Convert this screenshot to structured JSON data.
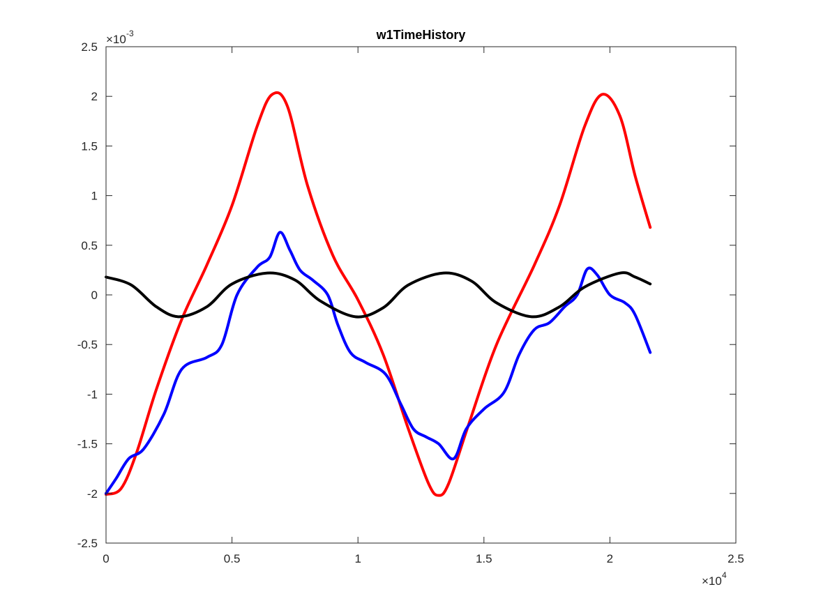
{
  "chart_data": {
    "type": "line",
    "title": "w1TimeHistory",
    "xlabel": "",
    "ylabel": "",
    "xlim": [
      0,
      25000
    ],
    "ylim": [
      -0.0025,
      0.0025
    ],
    "x_ticks": [
      0,
      5000,
      10000,
      15000,
      20000,
      25000
    ],
    "x_tick_labels": [
      "0",
      "0.5",
      "1",
      "1.5",
      "2",
      "2.5"
    ],
    "y_ticks": [
      -0.0025,
      -0.002,
      -0.0015,
      -0.001,
      -0.0005,
      0,
      0.0005,
      0.001,
      0.0015,
      0.002,
      0.0025
    ],
    "y_tick_labels": [
      "-2.5",
      "-2",
      "-1.5",
      "-1",
      "-0.5",
      "0",
      "0.5",
      "1",
      "1.5",
      "2",
      "2.5"
    ],
    "x_exponent_label": {
      "base": "×10",
      "exp": "4"
    },
    "y_exponent_label": {
      "base": "×10",
      "exp": "-3"
    },
    "grid": false,
    "box": true,
    "series": [
      {
        "color": "#ff0000",
        "x": [
          0,
          600,
          1200,
          2000,
          3000,
          4000,
          5000,
          6000,
          6600,
          7200,
          8000,
          9000,
          10000,
          11000,
          12000,
          12800,
          13200,
          13600,
          14400,
          15500,
          17000,
          18000,
          19000,
          19700,
          20400,
          21000,
          21600
        ],
        "values": [
          -0.00201,
          -0.00195,
          -0.0016,
          -0.00095,
          -0.00025,
          0.0003,
          0.0009,
          0.0017,
          0.00202,
          0.0019,
          0.0011,
          0.0004,
          -5e-05,
          -0.0006,
          -0.00135,
          -0.0019,
          -0.00202,
          -0.0019,
          -0.0013,
          -0.0005,
          0.0003,
          0.0009,
          0.0017,
          0.00202,
          0.0018,
          0.0012,
          0.00068
        ]
      },
      {
        "color": "#0000ff",
        "x": [
          0,
          400,
          900,
          1500,
          2300,
          3000,
          4000,
          4600,
          5200,
          6000,
          6500,
          6900,
          7300,
          7700,
          8200,
          8800,
          9200,
          9700,
          10300,
          11100,
          11700,
          12200,
          12700,
          13200,
          13800,
          14300,
          15000,
          15800,
          16400,
          17000,
          17600,
          18200,
          18700,
          19100,
          19500,
          20000,
          20600,
          21000,
          21600
        ],
        "values": [
          -0.002,
          -0.00185,
          -0.00165,
          -0.00155,
          -0.0012,
          -0.00075,
          -0.00063,
          -0.0005,
          0.0,
          0.00028,
          0.00038,
          0.00063,
          0.00045,
          0.00025,
          0.00015,
          0.0,
          -0.0003,
          -0.00058,
          -0.00068,
          -0.0008,
          -0.0011,
          -0.00135,
          -0.00143,
          -0.0015,
          -0.00165,
          -0.00135,
          -0.00115,
          -0.00098,
          -0.0006,
          -0.00035,
          -0.00028,
          -0.00012,
          0.0,
          0.00026,
          0.0002,
          0.0,
          -8e-05,
          -0.0002,
          -0.00058
        ]
      },
      {
        "color": "#000000",
        "x": [
          0,
          1000,
          2000,
          2900,
          4000,
          5000,
          6400,
          7500,
          8500,
          9900,
          11000,
          12000,
          13400,
          14500,
          15500,
          16900,
          18000,
          19000,
          20400,
          21000,
          21600
        ],
        "values": [
          0.00018,
          0.0001,
          -0.00012,
          -0.00022,
          -0.00012,
          0.00011,
          0.00022,
          0.00015,
          -6e-05,
          -0.00022,
          -0.00013,
          0.0001,
          0.00022,
          0.00014,
          -8e-05,
          -0.00022,
          -0.00012,
          8e-05,
          0.00022,
          0.00018,
          0.00011
        ]
      }
    ]
  }
}
